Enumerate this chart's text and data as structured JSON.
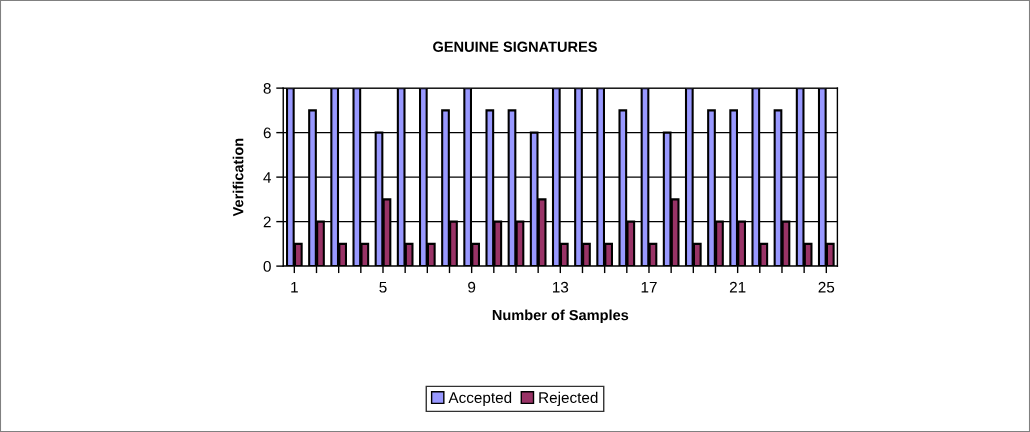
{
  "chart_data": {
    "type": "bar",
    "title": "GENUINE SIGNATURES",
    "xlabel": "Number of Samples",
    "ylabel": "Verification",
    "categories": [
      "1",
      null,
      null,
      null,
      "5",
      null,
      null,
      null,
      "9",
      null,
      null,
      null,
      "13",
      null,
      null,
      null,
      "17",
      null,
      null,
      null,
      "21",
      null,
      null,
      null,
      "25"
    ],
    "series": [
      {
        "name": "Accepted",
        "color": "#9999ff",
        "values": [
          8,
          7,
          8,
          8,
          6,
          8,
          8,
          7,
          8,
          7,
          7,
          6,
          8,
          8,
          8,
          7,
          8,
          6,
          8,
          7,
          7,
          8,
          7,
          8,
          8
        ]
      },
      {
        "name": "Rejected",
        "color": "#993366",
        "values": [
          1,
          2,
          1,
          1,
          3,
          1,
          1,
          2,
          1,
          2,
          2,
          3,
          1,
          1,
          1,
          2,
          1,
          3,
          1,
          2,
          2,
          1,
          2,
          1,
          1
        ]
      }
    ],
    "ylim": [
      0,
      8
    ],
    "yticks": [
      0,
      2,
      4,
      6,
      8
    ],
    "grid": "y",
    "legend": "bottom"
  }
}
